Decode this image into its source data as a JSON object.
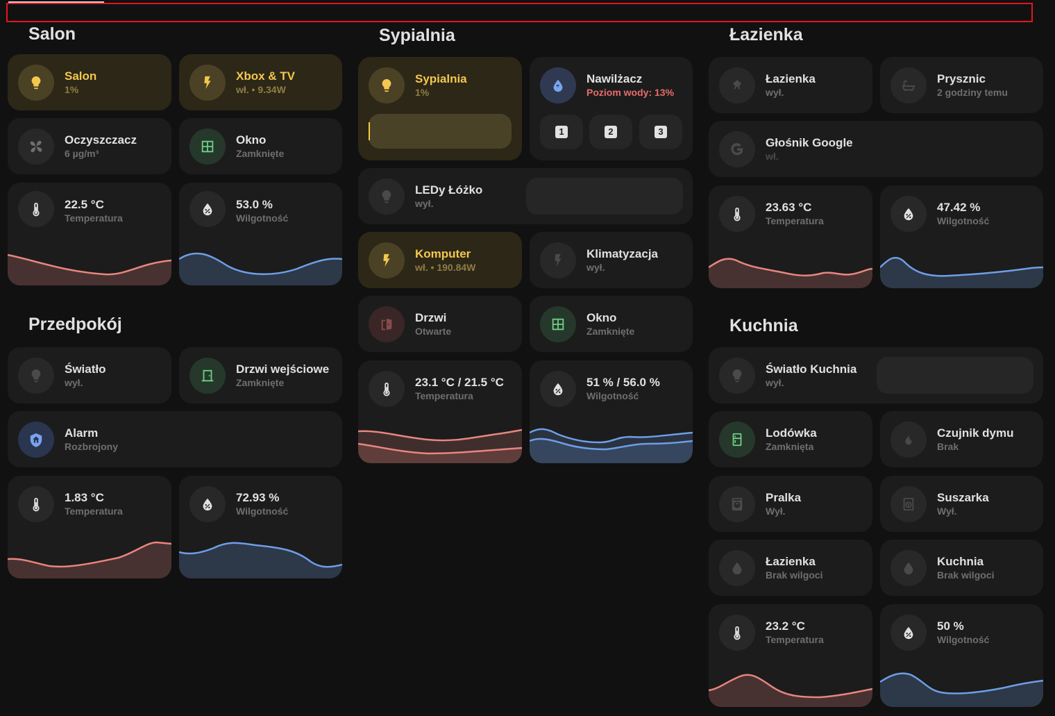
{
  "colors": {
    "background": "#111111",
    "card": "#1c1c1c",
    "card_on": "#2c2717",
    "accent_yellow": "#f4c84f",
    "temperature_line": "#e8867f",
    "humidity_line": "#6f9ee8",
    "warning": "#e86b6b",
    "topbar_border": "#e3161e"
  },
  "sections": {
    "salon": "Salon",
    "przedpokoj": "Przedpokój",
    "sypialnia": "Sypialnia",
    "lazienka": "Łazienka",
    "kuchnia": "Kuchnia"
  },
  "salon": {
    "light": {
      "name": "Salon",
      "state": "1%",
      "icon": "bulb-icon"
    },
    "xbox": {
      "name": "Xbox & TV",
      "state": "wł. • 9.34W",
      "icon": "flash-icon"
    },
    "purifier": {
      "name": "Oczyszczacz",
      "state": "6 µg/m³",
      "icon": "fan-icon"
    },
    "window": {
      "name": "Okno",
      "state": "Zamknięte",
      "icon": "window-icon"
    },
    "temp": {
      "value": "22.5 °C",
      "label": "Temperatura",
      "icon": "thermometer-icon"
    },
    "hum": {
      "value": "53.0 %",
      "label": "Wilgotność",
      "icon": "humidity-icon"
    }
  },
  "przedpokoj": {
    "light": {
      "name": "Światło",
      "state": "wył.",
      "icon": "bulb-icon"
    },
    "door": {
      "name": "Drzwi wejściowe",
      "state": "Zamknięte",
      "icon": "door-icon"
    },
    "alarm": {
      "name": "Alarm",
      "state": "Rozbrojony",
      "icon": "shield-home-icon"
    },
    "temp": {
      "value": "1.83 °C",
      "label": "Temperatura",
      "icon": "thermometer-icon"
    },
    "hum": {
      "value": "72.93 %",
      "label": "Wilgotność",
      "icon": "humidity-icon"
    }
  },
  "sypialnia": {
    "light": {
      "name": "Sypialnia",
      "state": "1%",
      "icon": "bulb-icon",
      "brightness": 1
    },
    "humidifier": {
      "name": "Nawilżacz",
      "state": "Poziom wody: 13%",
      "icon": "water-icon",
      "buttons": [
        "1",
        "2",
        "3"
      ]
    },
    "leds": {
      "name": "LEDy Łóżko",
      "state": "wył.",
      "icon": "bulb-icon"
    },
    "computer": {
      "name": "Komputer",
      "state": "wł. • 190.84W",
      "icon": "flash-icon"
    },
    "ac": {
      "name": "Klimatyzacja",
      "state": "wył.",
      "icon": "flash-icon"
    },
    "door": {
      "name": "Drzwi",
      "state": "Otwarte",
      "icon": "door-open-icon"
    },
    "window": {
      "name": "Okno",
      "state": "Zamknięte",
      "icon": "window-icon"
    },
    "temp": {
      "value": "23.1 °C / 21.5 °C",
      "label": "Temperatura",
      "icon": "thermometer-icon"
    },
    "hum": {
      "value": "51 % / 56.0 %",
      "label": "Wilgotność",
      "icon": "humidity-icon"
    }
  },
  "lazienka": {
    "light": {
      "name": "Łazienka",
      "state": "wył.",
      "icon": "ceiling-light-icon"
    },
    "shower": {
      "name": "Prysznic",
      "state": "2 godziny temu",
      "icon": "bathtub-icon"
    },
    "speaker": {
      "name": "Głośnik Google",
      "state": "wł.",
      "icon": "google-icon"
    },
    "temp": {
      "value": "23.63 °C",
      "label": "Temperatura",
      "icon": "thermometer-icon"
    },
    "hum": {
      "value": "47.42 %",
      "label": "Wilgotność",
      "icon": "humidity-icon"
    }
  },
  "kuchnia": {
    "light": {
      "name": "Światło Kuchnia",
      "state": "wył.",
      "icon": "bulb-icon"
    },
    "fridge": {
      "name": "Lodówka",
      "state": "Zamknięta",
      "icon": "fridge-icon"
    },
    "smoke": {
      "name": "Czujnik dymu",
      "state": "Brak",
      "icon": "fire-icon"
    },
    "washer": {
      "name": "Pralka",
      "state": "Wył.",
      "icon": "washing-machine-icon"
    },
    "dryer": {
      "name": "Suszarka",
      "state": "Wył.",
      "icon": "dryer-icon"
    },
    "leak1": {
      "name": "Łazienka",
      "state": "Brak wilgoci",
      "icon": "water-drop-icon"
    },
    "leak2": {
      "name": "Kuchnia",
      "state": "Brak wilgoci",
      "icon": "water-drop-icon"
    },
    "temp": {
      "value": "23.2 °C",
      "label": "Temperatura",
      "icon": "thermometer-icon"
    },
    "hum": {
      "value": "50 %",
      "label": "Wilgotność",
      "icon": "humidity-icon"
    }
  }
}
